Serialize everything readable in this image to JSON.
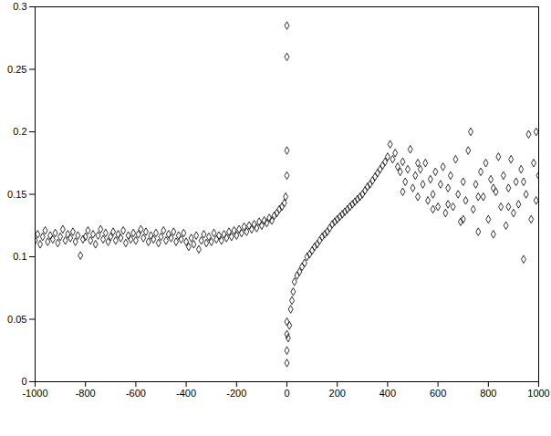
{
  "chart_data": {
    "type": "scatter",
    "marker": "diamond",
    "color": "#000000",
    "grid": false,
    "xlim": [
      -1000,
      1000
    ],
    "xticks": [
      -1000,
      -800,
      -600,
      -400,
      -200,
      0,
      200,
      400,
      600,
      800,
      1000
    ],
    "ylim": [
      0,
      0.3
    ],
    "yticks": [
      0,
      0.05,
      0.1,
      0.15,
      0.2,
      0.25,
      0.3
    ],
    "x": [
      -1000,
      -990,
      -980,
      -970,
      -960,
      -950,
      -940,
      -930,
      -920,
      -910,
      -900,
      -890,
      -880,
      -870,
      -860,
      -850,
      -840,
      -830,
      -820,
      -810,
      -800,
      -790,
      -780,
      -770,
      -760,
      -750,
      -740,
      -730,
      -720,
      -710,
      -700,
      -690,
      -680,
      -670,
      -660,
      -650,
      -640,
      -630,
      -620,
      -610,
      -600,
      -590,
      -580,
      -570,
      -560,
      -550,
      -540,
      -530,
      -520,
      -510,
      -500,
      -490,
      -480,
      -470,
      -460,
      -450,
      -440,
      -430,
      -420,
      -410,
      -400,
      -390,
      -380,
      -370,
      -360,
      -350,
      -340,
      -330,
      -320,
      -310,
      -300,
      -290,
      -280,
      -270,
      -260,
      -250,
      -240,
      -230,
      -220,
      -210,
      -200,
      -190,
      -180,
      -170,
      -160,
      -150,
      -140,
      -130,
      -120,
      -110,
      -100,
      -90,
      -80,
      -70,
      -60,
      -50,
      -40,
      -30,
      -20,
      -10,
      -5,
      0,
      0,
      0,
      0,
      0,
      0,
      0,
      0,
      5,
      10,
      15,
      20,
      25,
      30,
      40,
      50,
      60,
      70,
      80,
      90,
      100,
      110,
      120,
      130,
      140,
      150,
      160,
      170,
      180,
      190,
      200,
      210,
      220,
      230,
      240,
      250,
      260,
      270,
      280,
      290,
      300,
      310,
      320,
      330,
      340,
      350,
      360,
      370,
      380,
      390,
      400,
      410,
      420,
      430,
      440,
      450,
      460,
      470,
      480,
      490,
      500,
      510,
      520,
      530,
      540,
      550,
      560,
      570,
      580,
      590,
      600,
      610,
      620,
      630,
      640,
      650,
      660,
      670,
      680,
      690,
      700,
      710,
      720,
      730,
      740,
      750,
      760,
      770,
      780,
      790,
      800,
      810,
      820,
      830,
      840,
      850,
      860,
      870,
      880,
      890,
      900,
      910,
      920,
      930,
      940,
      950,
      960,
      970,
      980,
      990,
      1000,
      460,
      520,
      580,
      640,
      700,
      760,
      820,
      880,
      940,
      990
    ],
    "y": [
      0.113,
      0.118,
      0.11,
      0.116,
      0.121,
      0.112,
      0.117,
      0.114,
      0.119,
      0.111,
      0.116,
      0.122,
      0.113,
      0.118,
      0.115,
      0.12,
      0.112,
      0.117,
      0.101,
      0.114,
      0.116,
      0.121,
      0.113,
      0.118,
      0.11,
      0.117,
      0.122,
      0.114,
      0.119,
      0.112,
      0.116,
      0.12,
      0.113,
      0.118,
      0.115,
      0.121,
      0.111,
      0.117,
      0.114,
      0.119,
      0.113,
      0.118,
      0.122,
      0.115,
      0.12,
      0.112,
      0.117,
      0.114,
      0.119,
      0.111,
      0.116,
      0.121,
      0.113,
      0.118,
      0.115,
      0.12,
      0.112,
      0.117,
      0.114,
      0.119,
      0.112,
      0.108,
      0.115,
      0.11,
      0.117,
      0.106,
      0.113,
      0.118,
      0.111,
      0.116,
      0.112,
      0.119,
      0.114,
      0.117,
      0.113,
      0.118,
      0.115,
      0.12,
      0.116,
      0.121,
      0.117,
      0.122,
      0.119,
      0.124,
      0.12,
      0.125,
      0.122,
      0.126,
      0.123,
      0.128,
      0.125,
      0.129,
      0.127,
      0.131,
      0.129,
      0.133,
      0.135,
      0.138,
      0.14,
      0.143,
      0.148,
      0.165,
      0.185,
      0.26,
      0.285,
      0.015,
      0.025,
      0.038,
      0.048,
      0.035,
      0.045,
      0.058,
      0.065,
      0.072,
      0.08,
      0.085,
      0.088,
      0.092,
      0.095,
      0.1,
      0.102,
      0.105,
      0.108,
      0.11,
      0.113,
      0.116,
      0.118,
      0.12,
      0.123,
      0.126,
      0.128,
      0.13,
      0.132,
      0.134,
      0.136,
      0.138,
      0.14,
      0.142,
      0.144,
      0.146,
      0.148,
      0.15,
      0.153,
      0.156,
      0.158,
      0.161,
      0.164,
      0.167,
      0.17,
      0.173,
      0.176,
      0.18,
      0.19,
      0.178,
      0.183,
      0.172,
      0.168,
      0.176,
      0.16,
      0.17,
      0.186,
      0.155,
      0.165,
      0.148,
      0.17,
      0.158,
      0.175,
      0.145,
      0.162,
      0.15,
      0.168,
      0.14,
      0.158,
      0.172,
      0.135,
      0.155,
      0.165,
      0.14,
      0.178,
      0.15,
      0.128,
      0.16,
      0.145,
      0.185,
      0.2,
      0.138,
      0.158,
      0.12,
      0.168,
      0.148,
      0.175,
      0.13,
      0.162,
      0.118,
      0.152,
      0.18,
      0.14,
      0.165,
      0.125,
      0.155,
      0.178,
      0.135,
      0.16,
      0.142,
      0.17,
      0.098,
      0.15,
      0.198,
      0.13,
      0.175,
      0.145,
      0.165,
      0.152,
      0.175,
      0.138,
      0.142,
      0.13,
      0.148,
      0.155,
      0.14,
      0.16,
      0.2
    ]
  }
}
